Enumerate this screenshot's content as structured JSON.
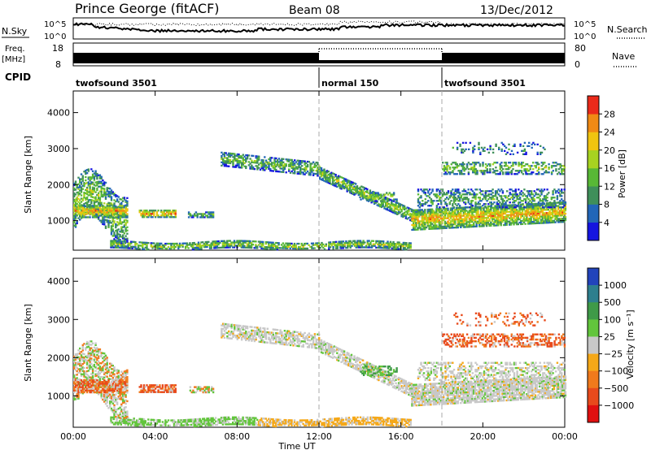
{
  "header": {
    "station": "Prince George (fitACF)",
    "beam": "Beam 08",
    "date": "13/Dec/2012"
  },
  "strip_labels": {
    "nsky": "N.Sky",
    "nsky_ticks": [
      "10^5",
      "10^0"
    ],
    "nsearch": "N.Search",
    "nsearch_ticks": [
      "10^5",
      "10^0"
    ],
    "freq_line1": "Freq.",
    "freq_line2": "[MHz]",
    "freq_ticks": [
      "18",
      "8"
    ],
    "nave": "Nave",
    "nave_ticks": [
      "80",
      "0"
    ],
    "cpid": "CPID"
  },
  "cpid_segments": [
    {
      "label": "twofsound 3501",
      "start": 0,
      "end": 12
    },
    {
      "label": "normal 150",
      "start": 12,
      "end": 18
    },
    {
      "label": "twofsound 3501",
      "start": 18,
      "end": 24
    }
  ],
  "chart_data": [
    {
      "type": "heatmap",
      "name": "power",
      "ylabel": "Slant Range [km]",
      "xlabel": "",
      "ylim": [
        180,
        4600
      ],
      "yticks": [
        "1000",
        "2000",
        "3000",
        "4000"
      ],
      "colorbar_label": "Power [dB]",
      "colorbar_ticks": [
        "4",
        "8",
        "12",
        "16",
        "20",
        "24",
        "28"
      ],
      "colorbar_range": [
        0,
        32
      ],
      "colors": [
        "#1515e0",
        "#2266b8",
        "#3f8f5a",
        "#58b836",
        "#a7d321",
        "#f0c410",
        "#f08a14",
        "#ea2a1a"
      ],
      "markers_hours": [
        12,
        18
      ]
    },
    {
      "type": "heatmap",
      "name": "velocity",
      "ylabel": "Slant Range [km]",
      "xlabel": "Time UT",
      "ylim": [
        180,
        4600
      ],
      "yticks": [
        "1000",
        "2000",
        "3000",
        "4000"
      ],
      "xticks": [
        "00:00",
        "04:00",
        "08:00",
        "12:00",
        "16:00",
        "20:00",
        "00:00"
      ],
      "xrange_hours": [
        0,
        24
      ],
      "colorbar_label": "Velocity [m s⁻¹]",
      "colorbar_ticks": [
        "1000",
        "500",
        "100",
        "25",
        "−25",
        "−100",
        "−500",
        "−1000"
      ],
      "colors": [
        "#2244bb",
        "#2e7f8e",
        "#3f9a48",
        "#62c53c",
        "#c8c8c8",
        "#f5a818",
        "#f07a1c",
        "#e84a1c",
        "#e01010"
      ],
      "markers_hours": [
        12,
        18
      ]
    }
  ]
}
